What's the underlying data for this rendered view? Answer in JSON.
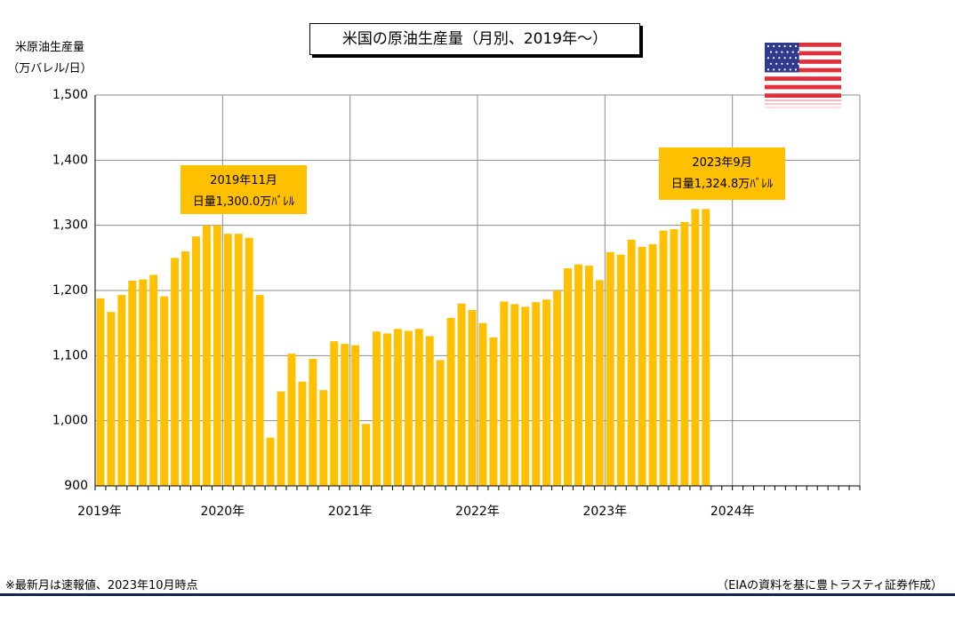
{
  "chart_data": {
    "type": "bar",
    "title": "米国の原油生産量（月別、2019年～）",
    "ylabel_line1": "米原油生産量",
    "ylabel_line2": "（万バレル/日）",
    "ylim": [
      900,
      1500
    ],
    "yticks": [
      900,
      1000,
      1100,
      1200,
      1300,
      1400,
      1500
    ],
    "ytick_labels": [
      "900",
      "1,000",
      "1,100",
      "1,200",
      "1,300",
      "1,400",
      "1,500"
    ],
    "xtick_labels": [
      "2019年",
      "2020年",
      "2021年",
      "2022年",
      "2023年",
      "2024年"
    ],
    "x_start": "2019-01",
    "months_on_axis": 72,
    "grid": true,
    "color": "#FFC000",
    "values": [
      1188,
      1167,
      1193,
      1215,
      1217,
      1224,
      1191,
      1250,
      1260,
      1283,
      1300,
      1300,
      1287,
      1287,
      1281,
      1193,
      974,
      1045,
      1103,
      1060,
      1095,
      1047,
      1122,
      1118,
      1116,
      995,
      1137,
      1134,
      1141,
      1138,
      1141,
      1130,
      1093,
      1158,
      1180,
      1170,
      1150,
      1128,
      1183,
      1179,
      1175,
      1182,
      1186,
      1200,
      1234,
      1240,
      1238,
      1216,
      1259,
      1255,
      1278,
      1267,
      1271,
      1292,
      1294,
      1305,
      1325,
      1325
    ],
    "annotations": [
      {
        "line1": "2019年11月",
        "line2": "日量1,300.0万ﾊﾞﾚﾙ"
      },
      {
        "line1": "2023年9月",
        "line2": "日量1,324.8万ﾊﾞﾚﾙ"
      }
    ]
  },
  "flag": {
    "icon": "us-flag-icon",
    "blue": "#2F3A8F",
    "red": "#E0303C"
  },
  "footnote_left": "※最新月は速報値、2023年10月時点",
  "footnote_right": "（EIAの資料を基に豊トラスティ証券作成）"
}
